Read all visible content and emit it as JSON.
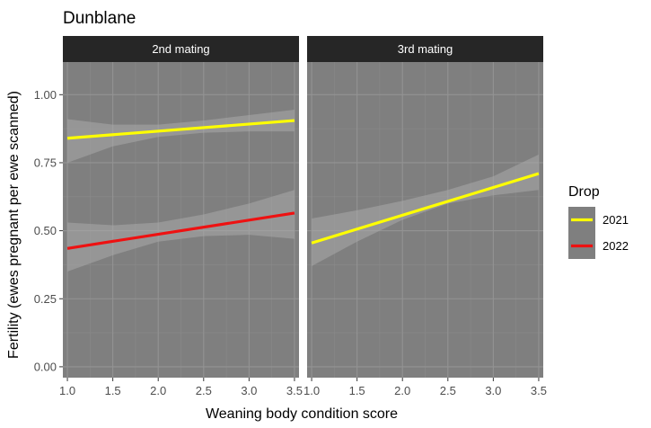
{
  "chart_data": {
    "type": "line",
    "title": "Dunblane",
    "xlabel": "Weaning body condition score",
    "ylabel": "Fertility (ewes pregnant per ewe scanned)",
    "xlim": [
      0.95,
      3.55
    ],
    "ylim": [
      -0.04,
      1.12
    ],
    "x_ticks": [
      "1.0",
      "1.5",
      "2.0",
      "2.5",
      "3.0",
      "3.5"
    ],
    "y_ticks": [
      "0.00",
      "0.25",
      "0.50",
      "0.75",
      "1.00"
    ],
    "legend": {
      "title": "Drop",
      "placement": "right",
      "entries": [
        {
          "name": "2021",
          "color": "#ffff00"
        },
        {
          "name": "2022",
          "color": "#ee1111"
        }
      ]
    },
    "panels": [
      {
        "strip": "2nd mating",
        "series": [
          {
            "name": "2021",
            "color": "#ffff00",
            "x": [
              1.0,
              3.5
            ],
            "y": [
              0.84,
              0.905
            ],
            "band_x": [
              1.0,
              1.5,
              2.0,
              2.5,
              3.0,
              3.5
            ],
            "band_lower": [
              0.75,
              0.81,
              0.845,
              0.86,
              0.865,
              0.865
            ],
            "band_upper": [
              0.91,
              0.89,
              0.89,
              0.905,
              0.925,
              0.945
            ]
          },
          {
            "name": "2022",
            "color": "#ee1111",
            "x": [
              1.0,
              3.5
            ],
            "y": [
              0.435,
              0.565
            ],
            "band_x": [
              1.0,
              1.5,
              2.0,
              2.5,
              3.0,
              3.5
            ],
            "band_lower": [
              0.35,
              0.41,
              0.46,
              0.48,
              0.485,
              0.47
            ],
            "band_upper": [
              0.53,
              0.52,
              0.53,
              0.56,
              0.6,
              0.65
            ]
          }
        ]
      },
      {
        "strip": "3rd mating",
        "series": [
          {
            "name": "2021",
            "color": "#ffff00",
            "x": [
              1.0,
              3.5
            ],
            "y": [
              0.455,
              0.71
            ],
            "band_x": [
              1.0,
              1.5,
              2.0,
              2.5,
              3.0,
              3.5
            ],
            "band_lower": [
              0.37,
              0.46,
              0.54,
              0.6,
              0.63,
              0.65
            ],
            "band_upper": [
              0.545,
              0.575,
              0.61,
              0.65,
              0.7,
              0.78
            ]
          }
        ]
      }
    ]
  }
}
